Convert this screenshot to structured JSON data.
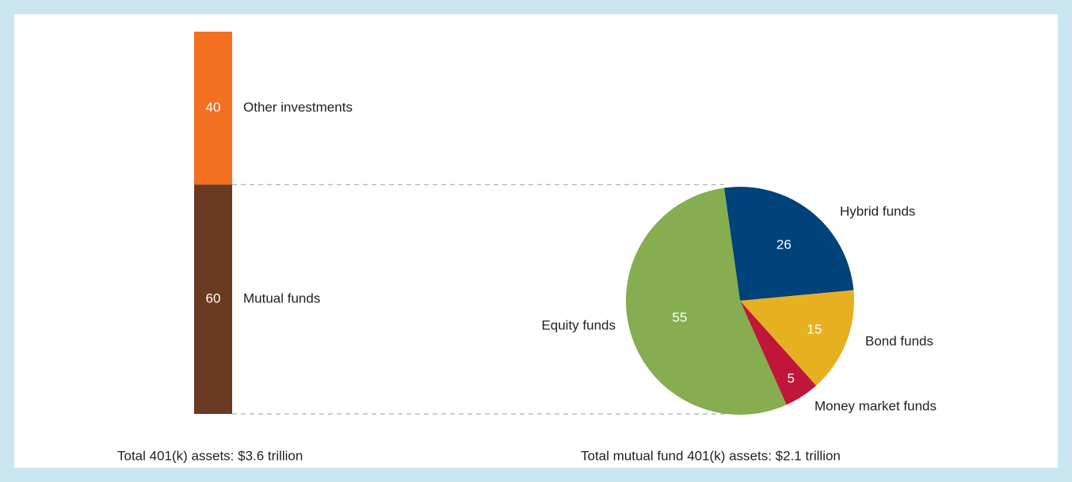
{
  "chart_data": [
    {
      "type": "stacked-bar",
      "series": [
        {
          "name": "Other investments",
          "color": "#f37021",
          "values": [
            40
          ]
        },
        {
          "name": "Mutual funds",
          "color": "#6b3a22",
          "values": [
            60
          ]
        }
      ],
      "caption": "Total 401(k) assets: $3.6 trillion"
    },
    {
      "type": "pie",
      "categories": [
        "Hybrid funds",
        "Bond funds",
        "Money market funds",
        "Equity funds"
      ],
      "values": [
        26,
        15,
        5,
        55
      ],
      "colors": [
        "#00427a",
        "#e6b021",
        "#c0163a",
        "#86ad4f"
      ],
      "caption": "Total mutual fund 401(k) assets: $2.1 trillion"
    }
  ]
}
